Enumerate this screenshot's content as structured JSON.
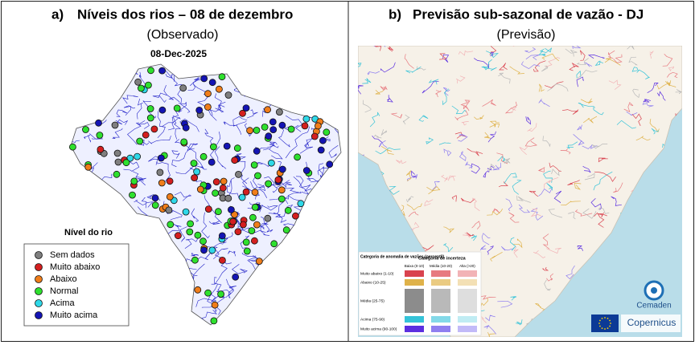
{
  "panels": [
    {
      "label": "a)",
      "title": "Níveis dos rios – 08 de dezembro",
      "subtitle": "(Observado)",
      "map_date": "08-Dec-2025",
      "legend": {
        "title": "Nível do rio",
        "items": [
          {
            "name": "Sem dados",
            "color": "#7f7f7f"
          },
          {
            "name": "Muito abaixo",
            "color": "#d41f1f"
          },
          {
            "name": "Abaixo",
            "color": "#f07d1a"
          },
          {
            "name": "Normal",
            "color": "#2ee02e"
          },
          {
            "name": "Acima",
            "color": "#2fd8e8"
          },
          {
            "name": "Muito acima",
            "color": "#1414b4"
          }
        ]
      }
    },
    {
      "label": "b)",
      "title": "Previsão sub-sazonal de vazão - DJ",
      "subtitle": "(Previsão)",
      "legend": {
        "row_title": "Categoria de anomalia de vazões (percentil)",
        "column_title": "Categoria de incerteza",
        "columns": [
          "Baixa (0-10)",
          "Média (10-20)",
          "Alta (>20)"
        ],
        "rows": [
          {
            "name": "Muito abaixo (1-10)",
            "colors": [
              "#d9434f",
              "#e77a80",
              "#f2b3b6"
            ]
          },
          {
            "name": "Abaixo (10-25)",
            "colors": [
              "#dfb24a",
              "#eacb82",
              "#f3e0b5"
            ]
          },
          {
            "name": "Média (25-75)",
            "colors": [
              "#8c8c8c",
              "#b9b9b9",
              "#dedede"
            ]
          },
          {
            "name": "Acima (75-90)",
            "colors": [
              "#35c3d8",
              "#83d9e8",
              "#c0ecf3"
            ]
          },
          {
            "name": "Muito acima (90-100)",
            "colors": [
              "#5b2fe0",
              "#8f7ff0",
              "#c2baf8"
            ]
          }
        ]
      },
      "logos": [
        "Cemaden",
        "Copernicus"
      ]
    }
  ]
}
